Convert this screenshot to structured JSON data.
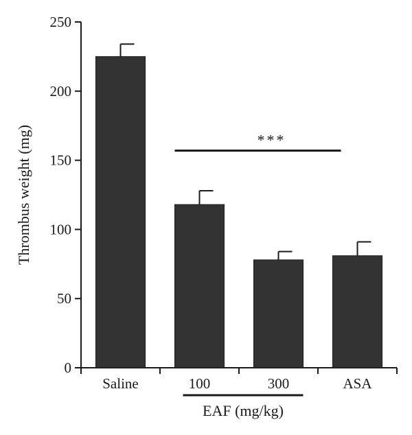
{
  "chart_data": {
    "type": "bar",
    "title": "",
    "xlabel": "",
    "ylabel": "Thrombus weight (mg)",
    "ylim": [
      0,
      250
    ],
    "yticks": [
      0,
      50,
      100,
      150,
      200,
      250
    ],
    "grid": false,
    "categories": [
      "Saline",
      "100",
      "300",
      "ASA"
    ],
    "values": [
      225,
      118,
      78,
      81
    ],
    "errors": [
      9,
      10,
      6,
      10
    ],
    "bar_color": "#333333",
    "group_label": {
      "text": "EAF (mg/kg)",
      "categories": [
        "100",
        "300"
      ]
    },
    "significance": {
      "label": "***",
      "from_category": "100",
      "to_category": "ASA",
      "y": 157
    }
  }
}
